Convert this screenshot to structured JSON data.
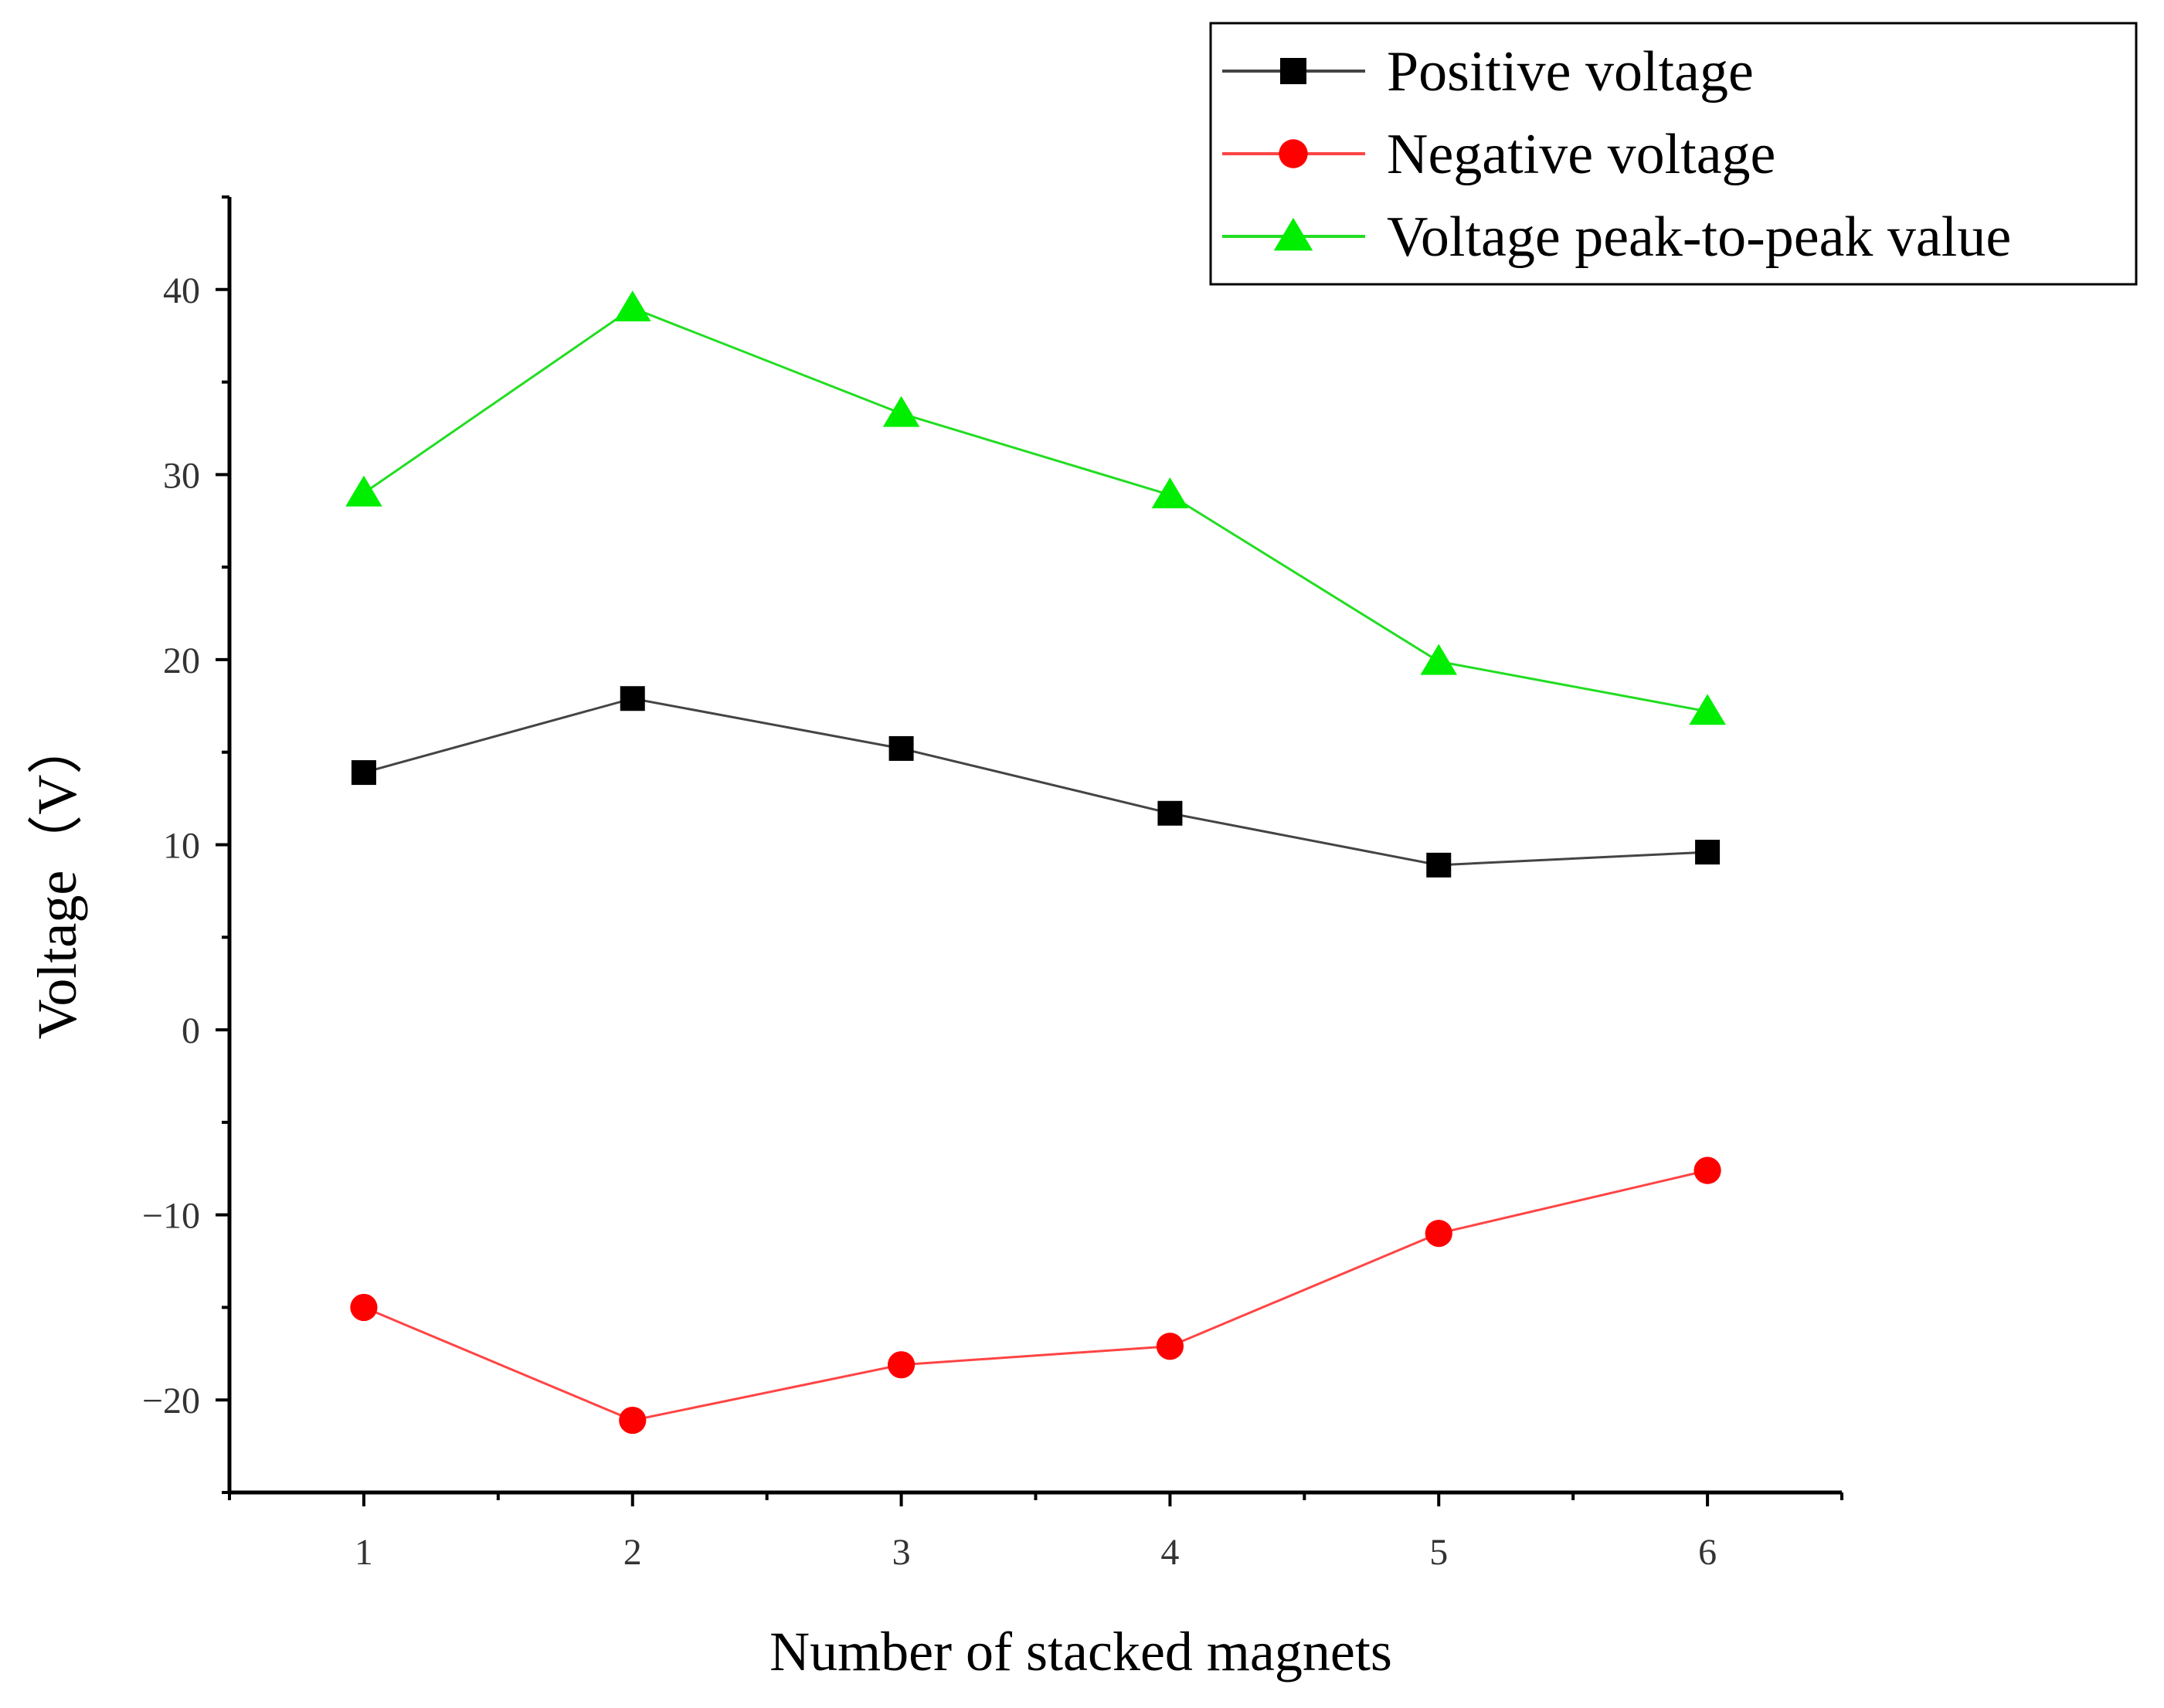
{
  "chart_data": {
    "type": "line",
    "xlabel": "Number of stacked magnets",
    "ylabel": "Voltage（V）",
    "x": [
      1,
      2,
      3,
      4,
      5,
      6
    ],
    "xlim": [
      0.5,
      6.5
    ],
    "ylim": [
      -25,
      45
    ],
    "x_ticks": [
      1,
      2,
      3,
      4,
      5,
      6
    ],
    "y_ticks": [
      -20,
      -10,
      0,
      10,
      20,
      30,
      40
    ],
    "y_tick_labels": [
      "−20",
      "−10",
      "0",
      "10",
      "20",
      "30",
      "40"
    ],
    "grid": false,
    "legend_position": "top-right",
    "series": [
      {
        "name": "Positive voltage",
        "marker": "square",
        "color": "#000000",
        "line_color": "#444444",
        "values": [
          13.9,
          17.9,
          15.2,
          11.7,
          8.9,
          9.6
        ]
      },
      {
        "name": "Negative voltage",
        "marker": "circle",
        "color": "#ff0000",
        "line_color": "#ff4444",
        "values": [
          -15.0,
          -21.1,
          -18.1,
          -17.1,
          -11.0,
          -7.6
        ]
      },
      {
        "name": "Voltage peak-to-peak value",
        "marker": "triangle",
        "color": "#00ee00",
        "line_color": "#22dd22",
        "values": [
          29.0,
          39.0,
          33.3,
          28.9,
          19.9,
          17.2
        ]
      }
    ]
  }
}
